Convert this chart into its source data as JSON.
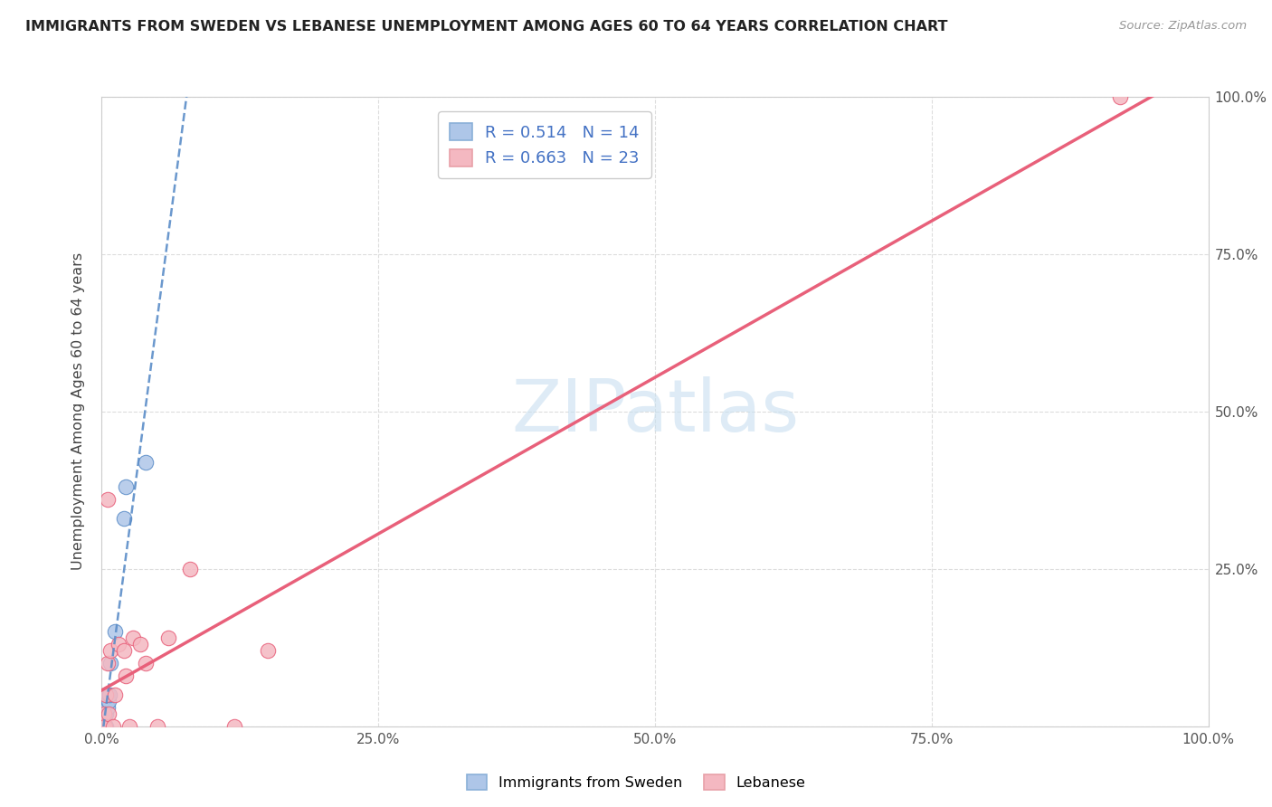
{
  "title": "IMMIGRANTS FROM SWEDEN VS LEBANESE UNEMPLOYMENT AMONG AGES 60 TO 64 YEARS CORRELATION CHART",
  "source": "Source: ZipAtlas.com",
  "ylabel": "Unemployment Among Ages 60 to 64 years",
  "xlabel": "",
  "xlim": [
    0,
    1
  ],
  "ylim": [
    0,
    1
  ],
  "xticks": [
    0,
    0.25,
    0.5,
    0.75,
    1.0
  ],
  "yticks": [
    0,
    0.25,
    0.5,
    0.75,
    1.0
  ],
  "xticklabels": [
    "0.0%",
    "25.0%",
    "50.0%",
    "75.0%",
    "100.0%"
  ],
  "yticklabels": [
    "",
    "25.0%",
    "50.0%",
    "75.0%",
    "100.0%"
  ],
  "sweden_R": 0.514,
  "sweden_N": 14,
  "lebanese_R": 0.663,
  "lebanese_N": 23,
  "sweden_color": "#aec6e8",
  "sweden_line_color": "#5b8dc8",
  "lebanese_color": "#f4b8c1",
  "lebanese_line_color": "#e8607a",
  "watermark_color": "#c8dff0",
  "legend_label_sweden": "Immigrants from Sweden",
  "legend_label_lebanese": "Lebanese",
  "sweden_x": [
    0.002,
    0.003,
    0.003,
    0.004,
    0.004,
    0.005,
    0.005,
    0.006,
    0.007,
    0.008,
    0.012,
    0.02,
    0.022,
    0.04
  ],
  "sweden_y": [
    0.0,
    0.0,
    0.02,
    0.0,
    0.02,
    0.03,
    0.05,
    0.04,
    0.05,
    0.1,
    0.15,
    0.33,
    0.38,
    0.42
  ],
  "lebanese_x": [
    0.001,
    0.002,
    0.003,
    0.004,
    0.005,
    0.005,
    0.006,
    0.008,
    0.01,
    0.012,
    0.015,
    0.02,
    0.022,
    0.025,
    0.028,
    0.035,
    0.04,
    0.05,
    0.06,
    0.08,
    0.12,
    0.15,
    0.92
  ],
  "lebanese_y": [
    0.0,
    0.02,
    0.0,
    0.05,
    0.1,
    0.36,
    0.02,
    0.12,
    0.0,
    0.05,
    0.13,
    0.12,
    0.08,
    0.0,
    0.14,
    0.13,
    0.1,
    0.0,
    0.14,
    0.25,
    0.0,
    0.12,
    1.0
  ],
  "background_color": "#ffffff",
  "grid_color": "#dddddd"
}
